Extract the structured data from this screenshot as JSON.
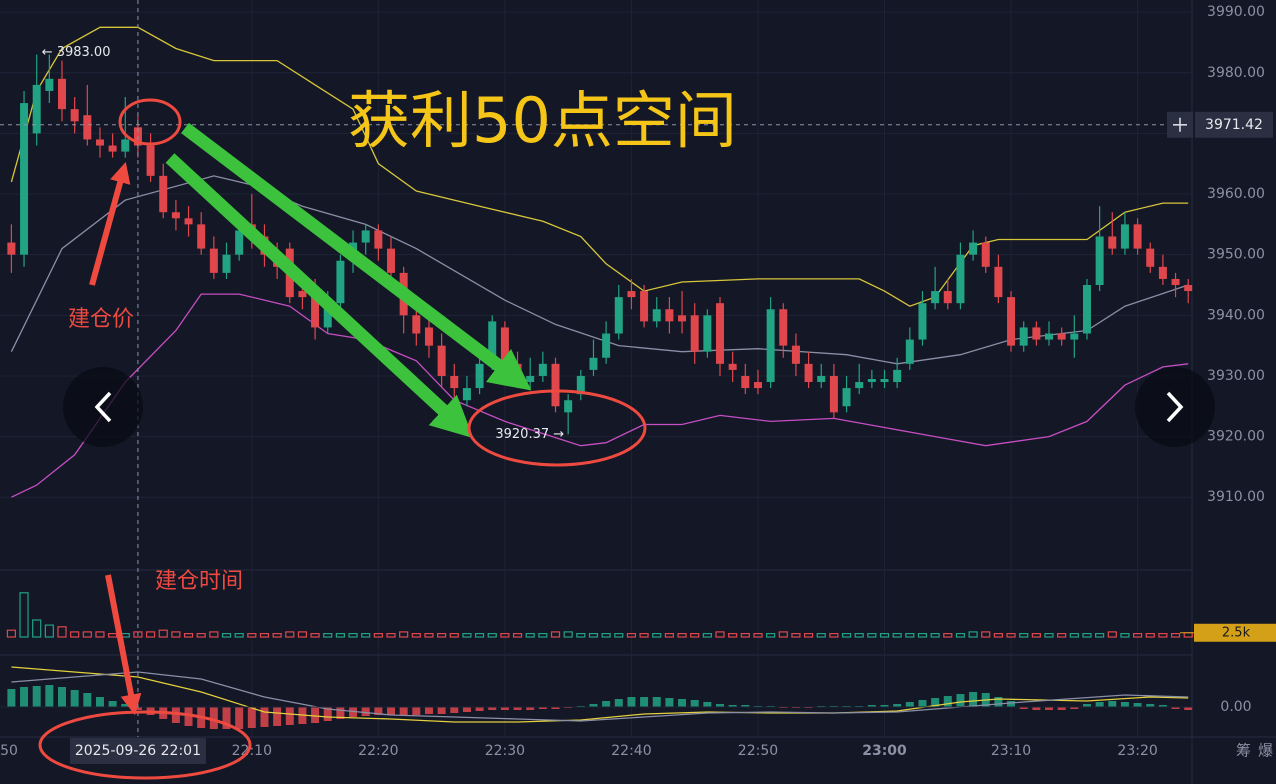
{
  "chart_data": {
    "type": "candlestick",
    "title": "获利50点空间",
    "annotations": [
      "建仓价",
      "建仓时间"
    ],
    "up_color": "#22a383",
    "down_color": "#e0474c",
    "open": [
      3952,
      3950,
      3970,
      3977,
      3979,
      3974,
      3973,
      3969,
      3968,
      3967,
      3971,
      3968,
      3963,
      3957,
      3956,
      3955,
      3951,
      3947,
      3950,
      3955,
      3953,
      3950,
      3951,
      3944,
      3944,
      3938,
      3942,
      3949,
      3952,
      3954,
      3951,
      3947,
      3940,
      3938,
      3935,
      3930,
      3926,
      3928,
      3932,
      3938,
      3932,
      3929,
      3930,
      3932,
      3924,
      3927,
      3931,
      3933,
      3937,
      3944,
      3944,
      3939,
      3941,
      3940,
      3940,
      3934,
      3942,
      3932,
      3930,
      3929,
      3929,
      3941,
      3935,
      3932,
      3929,
      3930,
      3925,
      3928,
      3929,
      3929,
      3929,
      3932,
      3936,
      3942,
      3944,
      3942,
      3950,
      3952,
      3948,
      3943,
      3935,
      3938,
      3936,
      3937,
      3936,
      3937,
      3945,
      3953,
      3951,
      3955,
      3951,
      3948,
      3946,
      3945
    ],
    "high": [
      3955,
      3977,
      3983,
      3983,
      3982,
      3976,
      3978,
      3971,
      3970,
      3976,
      3973,
      3970,
      3965,
      3959,
      3958,
      3957,
      3953,
      3952,
      3956,
      3960,
      3955,
      3952,
      3952,
      3946,
      3946,
      3944,
      3950,
      3954,
      3955,
      3955,
      3953,
      3948,
      3941,
      3940,
      3937,
      3932,
      3930,
      3934,
      3940,
      3939,
      3934,
      3933,
      3934,
      3933,
      3927,
      3931,
      3936,
      3939,
      3945,
      3946,
      3945,
      3943,
      3943,
      3944,
      3942,
      3941,
      3943,
      3934,
      3932,
      3931,
      3943,
      3942,
      3937,
      3934,
      3932,
      3932,
      3930,
      3932,
      3931,
      3931,
      3933,
      3938,
      3944,
      3948,
      3946,
      3952,
      3954,
      3953,
      3950,
      3944,
      3939,
      3939,
      3939,
      3938,
      3940,
      3946,
      3958,
      3957,
      3957,
      3956,
      3952,
      3950,
      3947,
      3946
    ],
    "low": [
      3947,
      3948,
      3968,
      3975,
      3972,
      3970,
      3968,
      3966,
      3966,
      3966,
      3966,
      3962,
      3956,
      3954,
      3953,
      3950,
      3946,
      3946,
      3949,
      3951,
      3948,
      3946,
      3942,
      3941,
      3936,
      3937,
      3941,
      3947,
      3950,
      3949,
      3945,
      3937,
      3935,
      3933,
      3928,
      3926,
      3925,
      3927,
      3931,
      3931,
      3928,
      3928,
      3929,
      3924,
      3920.37,
      3926,
      3930,
      3932,
      3936,
      3941,
      3938,
      3938,
      3937,
      3937,
      3932,
      3933,
      3930,
      3929,
      3927,
      3927,
      3928,
      3933,
      3930,
      3928,
      3928,
      3923,
      3924,
      3927,
      3928,
      3928,
      3928,
      3931,
      3935,
      3941,
      3941,
      3941,
      3949,
      3947,
      3942,
      3934,
      3934,
      3935,
      3935,
      3935,
      3933,
      3936,
      3944,
      3950,
      3950,
      3950,
      3947,
      3945,
      3943,
      3942
    ],
    "close": [
      3950,
      3975,
      3978,
      3979,
      3974,
      3972,
      3969,
      3968,
      3967,
      3969,
      3968,
      3963,
      3957,
      3956,
      3955,
      3951,
      3947,
      3950,
      3954,
      3953,
      3950,
      3948,
      3943,
      3943,
      3938,
      3942,
      3949,
      3952,
      3954,
      3951,
      3947,
      3940,
      3937,
      3935,
      3930,
      3928,
      3928,
      3932,
      3939,
      3932,
      3929,
      3930,
      3932,
      3925,
      3926,
      3930,
      3933,
      3937,
      3943,
      3943,
      3939,
      3941,
      3939,
      3939,
      3934,
      3940,
      3932,
      3931,
      3928,
      3928,
      3941,
      3935,
      3932,
      3929,
      3930,
      3924,
      3928,
      3929,
      3929.5,
      3929.5,
      3931,
      3936,
      3942,
      3944,
      3942,
      3950,
      3952,
      3948,
      3943,
      3935,
      3938,
      3936,
      3937,
      3936,
      3937,
      3945,
      3953,
      3951,
      3955,
      3951,
      3948,
      3946,
      3945,
      3944
    ],
    "xlim": [
      -0.9,
      93.3
    ],
    "xticks": [
      {
        "value": -1,
        "label": "50"
      },
      {
        "value": 19,
        "label": "22:10"
      },
      {
        "value": 29,
        "label": "22:20"
      },
      {
        "value": 39,
        "label": "22:30"
      },
      {
        "value": 49,
        "label": "22:40"
      },
      {
        "value": 59,
        "label": "22:50"
      },
      {
        "value": 69,
        "label": "23:00",
        "bold": true
      },
      {
        "value": 79,
        "label": "23:10"
      },
      {
        "value": 89,
        "label": "23:20"
      }
    ],
    "ylim": [
      3898,
      3992
    ],
    "yticks": [
      {
        "value": 3910,
        "label": "3910.00"
      },
      {
        "value": 3920,
        "label": "3920.00"
      },
      {
        "value": 3930,
        "label": "3930.00"
      },
      {
        "value": 3940,
        "label": "3940.00"
      },
      {
        "value": 3950,
        "label": "3950.00"
      },
      {
        "value": 3960,
        "label": "3960.00"
      },
      {
        "value": 3970,
        "label": "3970.00"
      },
      {
        "value": 3980,
        "label": "3980.00"
      },
      {
        "value": 3990,
        "label": "3990.00"
      }
    ],
    "grid": true,
    "bands": [
      {
        "color": "#d8c63a",
        "x": [
          0,
          2,
          4,
          7,
          10,
          13,
          16,
          21,
          24,
          27,
          29,
          32,
          37,
          42,
          45,
          47,
          50,
          53,
          59,
          67,
          69,
          71,
          73,
          76,
          78,
          85,
          88,
          91,
          93
        ],
        "values": [
          3962,
          3977,
          3984,
          3987.5,
          3987.5,
          3984,
          3982,
          3982,
          3978,
          3974,
          3965,
          3960.5,
          3958,
          3955.5,
          3953,
          3948.5,
          3944,
          3945.5,
          3946,
          3946,
          3944,
          3941.5,
          3943,
          3951.5,
          3952.5,
          3952.5,
          3957,
          3958.5,
          3958.5
        ]
      },
      {
        "color": "#8a8fa6",
        "x": [
          0,
          4,
          9,
          16,
          19,
          23,
          28,
          32,
          39,
          43,
          48,
          53,
          59,
          66,
          70,
          75,
          79,
          85,
          88,
          93
        ],
        "values": [
          3934,
          3951,
          3959,
          3963,
          3961.5,
          3958,
          3955,
          3951,
          3942.5,
          3938.5,
          3935,
          3934,
          3934.5,
          3933.5,
          3932,
          3933.5,
          3936,
          3937.5,
          3941.5,
          3945
        ]
      },
      {
        "color": "#c64ec2",
        "x": [
          0,
          2,
          5,
          9,
          13,
          15,
          18,
          22,
          25,
          28,
          32,
          35,
          39,
          45,
          47,
          50,
          53,
          56,
          60,
          65,
          69,
          73,
          77,
          82,
          85,
          88,
          91,
          93
        ],
        "values": [
          3910,
          3912,
          3917,
          3929,
          3937.5,
          3943.5,
          3943.5,
          3941.5,
          3937,
          3936,
          3932.5,
          3926,
          3922.5,
          3918.5,
          3919,
          3922,
          3922,
          3923.5,
          3922.5,
          3923,
          3921.5,
          3920,
          3918.5,
          3920,
          3922.5,
          3928.5,
          3931.5,
          3932
        ]
      }
    ],
    "last_price": {
      "value": 3971.42,
      "label": "3971.42"
    },
    "crosshair_time": {
      "value": 10,
      "label": "2025-09-26 22:01"
    },
    "extremes": [
      {
        "value": 3983,
        "label": "← 3983.00"
      },
      {
        "value": 3920.37,
        "label": "3920.37 →"
      }
    ],
    "volume": {
      "values": [
        4,
        26,
        10,
        7,
        6,
        3,
        3,
        3,
        2,
        2,
        3,
        3,
        4,
        3,
        2,
        2,
        3,
        2,
        2,
        2,
        2,
        2,
        3,
        3,
        2,
        2,
        2,
        2,
        2,
        2,
        2,
        3,
        2,
        2,
        2,
        2,
        2,
        2,
        2,
        2,
        2,
        2,
        2,
        3,
        3,
        2,
        2,
        2,
        2,
        2,
        2,
        2,
        2,
        2,
        2,
        2,
        3,
        2,
        2,
        2,
        2,
        3,
        2,
        2,
        2,
        2,
        2,
        2,
        2,
        2,
        2,
        2,
        2,
        2,
        2,
        2,
        3,
        3,
        2,
        2,
        2,
        2,
        2,
        2,
        2,
        2,
        2,
        3,
        2,
        2,
        2,
        2,
        2,
        2.5
      ],
      "ylim": [
        0,
        30
      ],
      "last": {
        "value": 2.5,
        "label": "2.5k"
      }
    },
    "macd": {
      "histogram": [
        1.8,
        2.0,
        2.1,
        2.2,
        2.0,
        1.7,
        1.4,
        1.0,
        0.6,
        0.3,
        -0.3,
        -0.8,
        -1.2,
        -1.6,
        -1.9,
        -2.1,
        -2.2,
        -2.2,
        -2.2,
        -2.1,
        -2.0,
        -1.9,
        -1.8,
        -1.7,
        -1.6,
        -1.4,
        -1.2,
        -1.0,
        -0.9,
        -0.8,
        -0.8,
        -0.8,
        -0.8,
        -0.7,
        -0.7,
        -0.6,
        -0.5,
        -0.4,
        -0.3,
        -0.3,
        -0.3,
        -0.3,
        -0.2,
        -0.2,
        -0.1,
        0.1,
        0.3,
        0.6,
        0.8,
        1.0,
        1.0,
        1.0,
        0.9,
        0.8,
        0.7,
        0.5,
        0.3,
        0.2,
        0.2,
        0.1,
        0.1,
        -0.1,
        -0.1,
        -0.1,
        0.1,
        0.1,
        0.1,
        0.1,
        0.2,
        0.2,
        0.3,
        0.5,
        0.7,
        0.9,
        1.1,
        1.3,
        1.5,
        1.4,
        1.0,
        0.6,
        -0.2,
        -0.3,
        -0.3,
        -0.3,
        -0.2,
        0.3,
        0.5,
        0.6,
        0.5,
        0.4,
        0.3,
        0.2,
        -0.2,
        -0.3
      ],
      "ylim": [
        -3,
        3
      ],
      "yticks": [
        {
          "value": 0,
          "label": "0.00"
        }
      ],
      "lines": [
        {
          "color": "#e3d03c",
          "x": [
            0,
            10,
            15,
            20,
            25,
            30,
            35,
            40,
            45,
            50,
            55,
            60,
            65,
            70,
            75,
            78,
            85,
            90,
            93
          ],
          "values": [
            4.0,
            3.0,
            1.5,
            -0.5,
            -1.0,
            -1.2,
            -1.5,
            -1.5,
            -1.3,
            -0.7,
            -0.5,
            -0.6,
            -0.6,
            -0.4,
            0.5,
            0.8,
            0.6,
            1.0,
            0.9
          ]
        },
        {
          "color": "#8a8fa6",
          "x": [
            0,
            10,
            15,
            20,
            25,
            30,
            35,
            40,
            45,
            50,
            55,
            60,
            65,
            70,
            75,
            80,
            88,
            93
          ],
          "values": [
            2.5,
            3.5,
            2.8,
            1.0,
            -0.2,
            -0.8,
            -1.0,
            -1.2,
            -1.4,
            -1.0,
            -0.6,
            -0.5,
            -0.6,
            -0.5,
            0.0,
            0.5,
            1.2,
            1.0
          ]
        }
      ]
    },
    "side_labels": [
      "筹",
      "爆"
    ]
  }
}
